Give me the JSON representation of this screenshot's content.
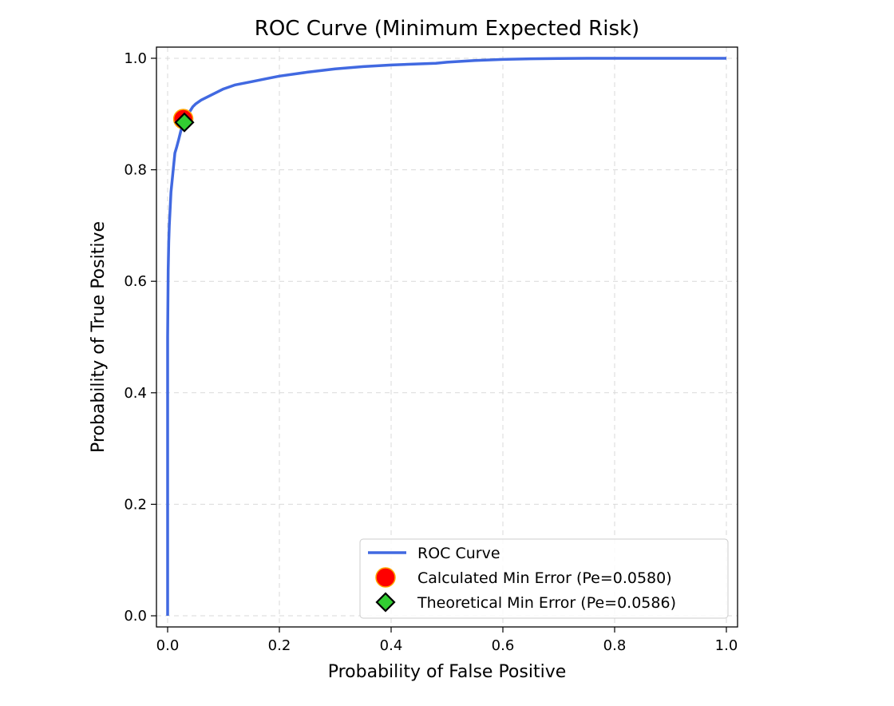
{
  "chart_data": {
    "type": "line",
    "title": "ROC Curve (Minimum Expected Risk)",
    "xlabel": "Probability of False Positive",
    "ylabel": "Probability of True Positive",
    "xlim": [
      -0.02,
      1.02
    ],
    "ylim": [
      -0.02,
      1.02
    ],
    "grid": true,
    "grid_style": "dashed",
    "legend_position": "lower-right",
    "x_ticks": [
      "0.0",
      "0.2",
      "0.4",
      "0.6",
      "0.8",
      "1.0"
    ],
    "y_ticks": [
      "0.0",
      "0.2",
      "0.4",
      "0.6",
      "0.8",
      "1.0"
    ],
    "series": [
      {
        "name": "ROC Curve",
        "kind": "line",
        "color": "#4169e1",
        "x": [
          0.0,
          0.0,
          0.0,
          0.001,
          0.002,
          0.003,
          0.004,
          0.006,
          0.008,
          0.01,
          0.013,
          0.016,
          0.02,
          0.025,
          0.03,
          0.035,
          0.04,
          0.045,
          0.05,
          0.06,
          0.07,
          0.08,
          0.09,
          0.1,
          0.12,
          0.15,
          0.18,
          0.2,
          0.25,
          0.3,
          0.35,
          0.4,
          0.45,
          0.48,
          0.5,
          0.55,
          0.6,
          0.65,
          0.7,
          0.75,
          0.8,
          0.85,
          0.9,
          0.95,
          1.0
        ],
        "y": [
          0.0,
          0.3,
          0.5,
          0.62,
          0.67,
          0.7,
          0.72,
          0.76,
          0.78,
          0.8,
          0.83,
          0.84,
          0.855,
          0.875,
          0.887,
          0.897,
          0.905,
          0.913,
          0.918,
          0.925,
          0.93,
          0.935,
          0.94,
          0.945,
          0.952,
          0.958,
          0.964,
          0.968,
          0.975,
          0.981,
          0.985,
          0.988,
          0.99,
          0.991,
          0.993,
          0.996,
          0.998,
          0.999,
          0.9995,
          1.0,
          1.0,
          1.0,
          1.0,
          1.0,
          1.0
        ]
      },
      {
        "name": "Calculated Min Error (Pe=0.0580)",
        "kind": "marker",
        "marker": "circle",
        "color": "#ff0000",
        "edge_color": "#ffa500",
        "x": [
          0.028
        ],
        "y": [
          0.891
        ]
      },
      {
        "name": "Theoretical Min Error (Pe=0.0586)",
        "kind": "marker",
        "marker": "diamond",
        "color": "#32cd32",
        "edge_color": "#000000",
        "x": [
          0.03
        ],
        "y": [
          0.885
        ]
      }
    ]
  }
}
